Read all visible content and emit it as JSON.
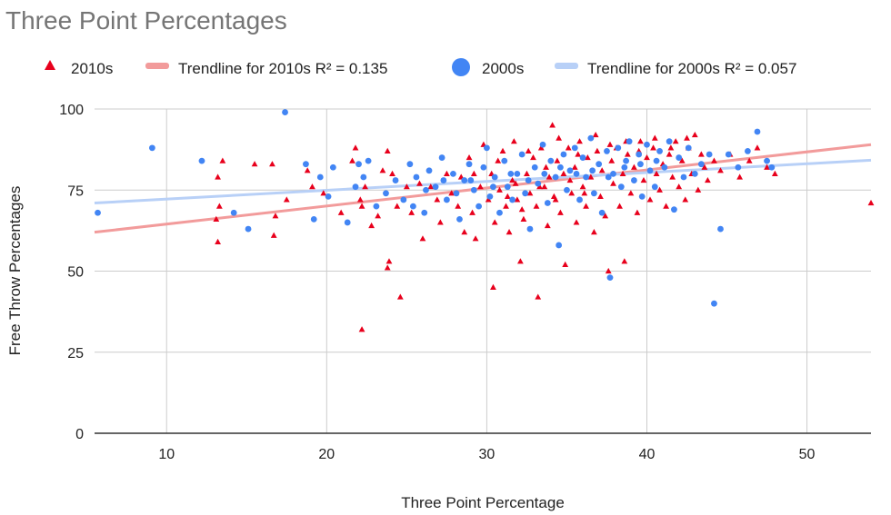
{
  "chart_data": {
    "type": "scatter",
    "title": "Three Point Percentages",
    "xlabel": "Three Point Percentage",
    "ylabel": "Free Throw Percentages",
    "xlim": [
      5.5,
      54
    ],
    "ylim": [
      0,
      100
    ],
    "x_ticks": [
      "10",
      "20",
      "30",
      "40",
      "50"
    ],
    "y_ticks": [
      "0",
      "25",
      "50",
      "75",
      "100"
    ],
    "grid": true,
    "legend_position": "top",
    "legend": [
      "2010s",
      "Trendline for 2010s R² = 0.135",
      "2000s",
      "Trendline for 2000s R² = 0.057"
    ],
    "series": [
      {
        "name": "2010s",
        "marker": "triangle",
        "color": "#e8001c",
        "points": [
          [
            13.2,
            79
          ],
          [
            13.3,
            70
          ],
          [
            13.5,
            84
          ],
          [
            13.1,
            66
          ],
          [
            13.2,
            59
          ],
          [
            15.5,
            83
          ],
          [
            16.6,
            83
          ],
          [
            16.8,
            67
          ],
          [
            16.7,
            61
          ],
          [
            17.5,
            72
          ],
          [
            18.8,
            81
          ],
          [
            19.1,
            76
          ],
          [
            19.8,
            74
          ],
          [
            20.9,
            68
          ],
          [
            21.6,
            84
          ],
          [
            21.8,
            88
          ],
          [
            22.2,
            70
          ],
          [
            22.1,
            72
          ],
          [
            22.4,
            76
          ],
          [
            22.2,
            32
          ],
          [
            22.8,
            64
          ],
          [
            23.2,
            67
          ],
          [
            23.5,
            81
          ],
          [
            23.8,
            87
          ],
          [
            24.1,
            80
          ],
          [
            24.4,
            70
          ],
          [
            24.6,
            42
          ],
          [
            25.0,
            76
          ],
          [
            23.8,
            51
          ],
          [
            23.9,
            53
          ],
          [
            25.3,
            68
          ],
          [
            25.8,
            77
          ],
          [
            26.0,
            60
          ],
          [
            26.5,
            76
          ],
          [
            26.9,
            72
          ],
          [
            27.1,
            65
          ],
          [
            27.5,
            80
          ],
          [
            27.8,
            74
          ],
          [
            28.2,
            70
          ],
          [
            28.4,
            79
          ],
          [
            28.6,
            62
          ],
          [
            28.9,
            85
          ],
          [
            29.1,
            68
          ],
          [
            29.3,
            60
          ],
          [
            29.6,
            76
          ],
          [
            29.8,
            89
          ],
          [
            30.1,
            72
          ],
          [
            30.3,
            80
          ],
          [
            30.5,
            65
          ],
          [
            30.4,
            45
          ],
          [
            30.8,
            75
          ],
          [
            31.0,
            87
          ],
          [
            31.2,
            70
          ],
          [
            31.4,
            62
          ],
          [
            31.6,
            78
          ],
          [
            31.7,
            90
          ],
          [
            31.9,
            72
          ],
          [
            32.1,
            53
          ],
          [
            32.3,
            66
          ],
          [
            32.5,
            80
          ],
          [
            32.7,
            74
          ],
          [
            32.9,
            85
          ],
          [
            33.1,
            70
          ],
          [
            33.2,
            42
          ],
          [
            33.4,
            88
          ],
          [
            33.6,
            76
          ],
          [
            33.8,
            64
          ],
          [
            33.9,
            79
          ],
          [
            34.1,
            95
          ],
          [
            34.2,
            73
          ],
          [
            34.4,
            84
          ],
          [
            34.6,
            68
          ],
          [
            34.8,
            80
          ],
          [
            34.9,
            52
          ],
          [
            35.1,
            88
          ],
          [
            35.3,
            74
          ],
          [
            35.5,
            82
          ],
          [
            35.6,
            65
          ],
          [
            35.8,
            90
          ],
          [
            36.0,
            76
          ],
          [
            36.2,
            70
          ],
          [
            36.3,
            85
          ],
          [
            36.5,
            79
          ],
          [
            36.7,
            62
          ],
          [
            36.9,
            87
          ],
          [
            37.1,
            73
          ],
          [
            37.2,
            81
          ],
          [
            37.4,
            67
          ],
          [
            37.6,
            50
          ],
          [
            37.8,
            84
          ],
          [
            37.9,
            77
          ],
          [
            38.1,
            88
          ],
          [
            38.3,
            70
          ],
          [
            38.5,
            80
          ],
          [
            38.6,
            53
          ],
          [
            38.8,
            86
          ],
          [
            39.0,
            74
          ],
          [
            39.2,
            82
          ],
          [
            39.4,
            68
          ],
          [
            39.6,
            90
          ],
          [
            39.8,
            78
          ],
          [
            40.0,
            85
          ],
          [
            40.2,
            72
          ],
          [
            40.4,
            88
          ],
          [
            40.6,
            80
          ],
          [
            40.8,
            75
          ],
          [
            41.0,
            83
          ],
          [
            41.2,
            70
          ],
          [
            41.4,
            86
          ],
          [
            41.6,
            79
          ],
          [
            41.8,
            90
          ],
          [
            42.0,
            76
          ],
          [
            42.2,
            84
          ],
          [
            42.4,
            72
          ],
          [
            42.6,
            88
          ],
          [
            42.8,
            80
          ],
          [
            43.0,
            92
          ],
          [
            43.2,
            75
          ],
          [
            43.4,
            86
          ],
          [
            43.6,
            82
          ],
          [
            43.8,
            78
          ],
          [
            44.2,
            84
          ],
          [
            44.6,
            81
          ],
          [
            45.2,
            86
          ],
          [
            45.8,
            79
          ],
          [
            46.4,
            84
          ],
          [
            46.9,
            88
          ],
          [
            47.5,
            82
          ],
          [
            48.0,
            80
          ],
          [
            54.0,
            71
          ],
          [
            29.2,
            80
          ],
          [
            30.7,
            84
          ],
          [
            31.8,
            77
          ],
          [
            32.6,
            87
          ],
          [
            33.7,
            82
          ],
          [
            34.5,
            91
          ],
          [
            35.7,
            86
          ],
          [
            36.8,
            92
          ],
          [
            37.7,
            89
          ],
          [
            38.7,
            90
          ],
          [
            39.5,
            87
          ],
          [
            40.5,
            91
          ],
          [
            41.5,
            88
          ],
          [
            42.5,
            91
          ],
          [
            31.3,
            73
          ],
          [
            32.2,
            69
          ],
          [
            33.3,
            76
          ],
          [
            34.3,
            72
          ],
          [
            35.2,
            78
          ],
          [
            36.1,
            74
          ]
        ]
      },
      {
        "name": "2000s",
        "marker": "circle",
        "color": "#4285f4",
        "points": [
          [
            5.7,
            68
          ],
          [
            9.1,
            88
          ],
          [
            12.2,
            84
          ],
          [
            14.2,
            68
          ],
          [
            15.1,
            63
          ],
          [
            17.4,
            99
          ],
          [
            18.7,
            83
          ],
          [
            19.2,
            66
          ],
          [
            19.6,
            79
          ],
          [
            20.1,
            73
          ],
          [
            20.4,
            82
          ],
          [
            21.3,
            65
          ],
          [
            21.8,
            76
          ],
          [
            22.3,
            79
          ],
          [
            22.0,
            83
          ],
          [
            22.6,
            84
          ],
          [
            23.1,
            70
          ],
          [
            23.7,
            74
          ],
          [
            24.3,
            78
          ],
          [
            24.8,
            72
          ],
          [
            25.2,
            83
          ],
          [
            25.6,
            79
          ],
          [
            26.1,
            68
          ],
          [
            26.4,
            81
          ],
          [
            26.8,
            76
          ],
          [
            27.2,
            85
          ],
          [
            27.5,
            72
          ],
          [
            27.9,
            80
          ],
          [
            28.3,
            66
          ],
          [
            28.6,
            78
          ],
          [
            28.9,
            83
          ],
          [
            29.2,
            75
          ],
          [
            29.5,
            70
          ],
          [
            29.8,
            82
          ],
          [
            30.0,
            88
          ],
          [
            30.2,
            73
          ],
          [
            30.5,
            79
          ],
          [
            30.8,
            68
          ],
          [
            31.1,
            84
          ],
          [
            31.3,
            76
          ],
          [
            31.6,
            72
          ],
          [
            31.9,
            80
          ],
          [
            32.2,
            86
          ],
          [
            32.4,
            74
          ],
          [
            32.7,
            63
          ],
          [
            33.0,
            82
          ],
          [
            33.2,
            77
          ],
          [
            33.5,
            89
          ],
          [
            33.8,
            71
          ],
          [
            34.0,
            84
          ],
          [
            34.3,
            79
          ],
          [
            34.5,
            58
          ],
          [
            34.8,
            86
          ],
          [
            35.0,
            75
          ],
          [
            35.2,
            81
          ],
          [
            35.5,
            88
          ],
          [
            35.8,
            72
          ],
          [
            36.0,
            85
          ],
          [
            36.2,
            79
          ],
          [
            36.5,
            91
          ],
          [
            36.7,
            74
          ],
          [
            37.0,
            83
          ],
          [
            37.2,
            68
          ],
          [
            37.5,
            87
          ],
          [
            37.7,
            48
          ],
          [
            37.9,
            80
          ],
          [
            38.2,
            88
          ],
          [
            38.4,
            76
          ],
          [
            38.7,
            84
          ],
          [
            38.9,
            90
          ],
          [
            39.2,
            78
          ],
          [
            39.5,
            86
          ],
          [
            39.7,
            73
          ],
          [
            40.0,
            89
          ],
          [
            40.2,
            81
          ],
          [
            40.5,
            76
          ],
          [
            40.8,
            87
          ],
          [
            41.1,
            82
          ],
          [
            41.4,
            90
          ],
          [
            41.7,
            69
          ],
          [
            42.0,
            85
          ],
          [
            42.3,
            79
          ],
          [
            42.6,
            88
          ],
          [
            43.0,
            80
          ],
          [
            43.4,
            83
          ],
          [
            43.9,
            86
          ],
          [
            44.2,
            40
          ],
          [
            44.6,
            63
          ],
          [
            45.1,
            86
          ],
          [
            45.7,
            82
          ],
          [
            46.3,
            87
          ],
          [
            46.9,
            93
          ],
          [
            47.5,
            84
          ],
          [
            47.8,
            82
          ],
          [
            29.0,
            78
          ],
          [
            30.4,
            76
          ],
          [
            31.5,
            80
          ],
          [
            32.6,
            78
          ],
          [
            33.6,
            80
          ],
          [
            34.6,
            82
          ],
          [
            35.6,
            80
          ],
          [
            36.6,
            81
          ],
          [
            37.6,
            79
          ],
          [
            38.6,
            82
          ],
          [
            39.6,
            83
          ],
          [
            40.6,
            84
          ],
          [
            27.3,
            78
          ],
          [
            28.1,
            74
          ],
          [
            26.2,
            75
          ],
          [
            25.4,
            70
          ]
        ]
      }
    ],
    "trendlines": [
      {
        "name": "Trendline for 2010s",
        "color": "#f29b9b",
        "x": [
          5.5,
          54
        ],
        "y": [
          62,
          89
        ]
      },
      {
        "name": "Trendline for 2000s",
        "color": "#b8d0f7",
        "x": [
          5.5,
          54
        ],
        "y": [
          71,
          84.2
        ]
      }
    ]
  }
}
